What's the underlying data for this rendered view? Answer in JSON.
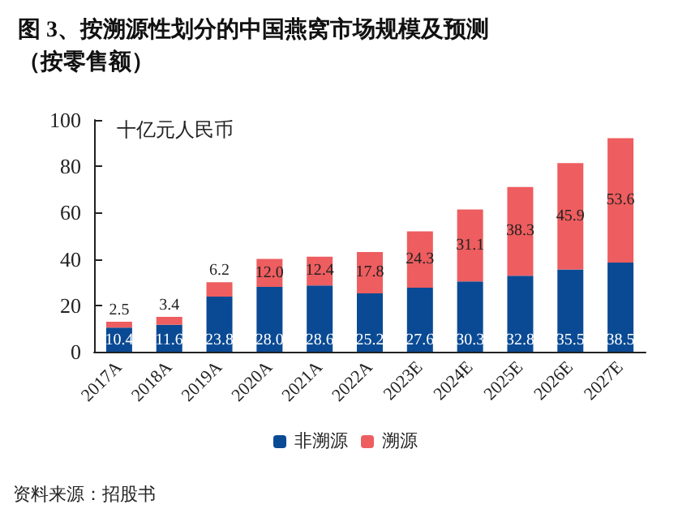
{
  "chart_data": {
    "type": "bar",
    "title": "图 3、按溯源性划分的中国燕窝市场规模及预测（按零售额）",
    "ylabel": "十亿元人民币",
    "categories": [
      "2017A",
      "2018A",
      "2019A",
      "2020A",
      "2021A",
      "2022A",
      "2023E",
      "2024E",
      "2025E",
      "2026E",
      "2027E"
    ],
    "series": [
      {
        "name": "非溯源",
        "color": "#0a4a94",
        "values": [
          10.4,
          11.6,
          23.8,
          28.0,
          28.6,
          25.2,
          27.6,
          30.3,
          32.8,
          35.5,
          38.5
        ],
        "value_labels": [
          "10.4",
          "11.6",
          "23.8",
          "28.0",
          "28.6",
          "25.2",
          "27.6",
          "30.3",
          "32.8",
          "35.5",
          "38.5"
        ]
      },
      {
        "name": "溯源",
        "color": "#ee5d5f",
        "values": [
          2.5,
          3.4,
          6.2,
          12.0,
          12.4,
          17.8,
          24.3,
          31.1,
          38.3,
          45.9,
          53.6
        ],
        "value_labels": [
          "2.5",
          "3.4",
          "6.2",
          "12.0",
          "12.4",
          "17.8",
          "24.3",
          "31.1",
          "38.3",
          "45.9",
          "53.6"
        ]
      }
    ],
    "stacked": true,
    "ylim": [
      0,
      100
    ],
    "yticks": [
      0,
      20,
      40,
      60,
      80,
      100
    ],
    "grid": false,
    "legend": "bottom",
    "annotations": [
      "资料来源：招股书"
    ]
  }
}
